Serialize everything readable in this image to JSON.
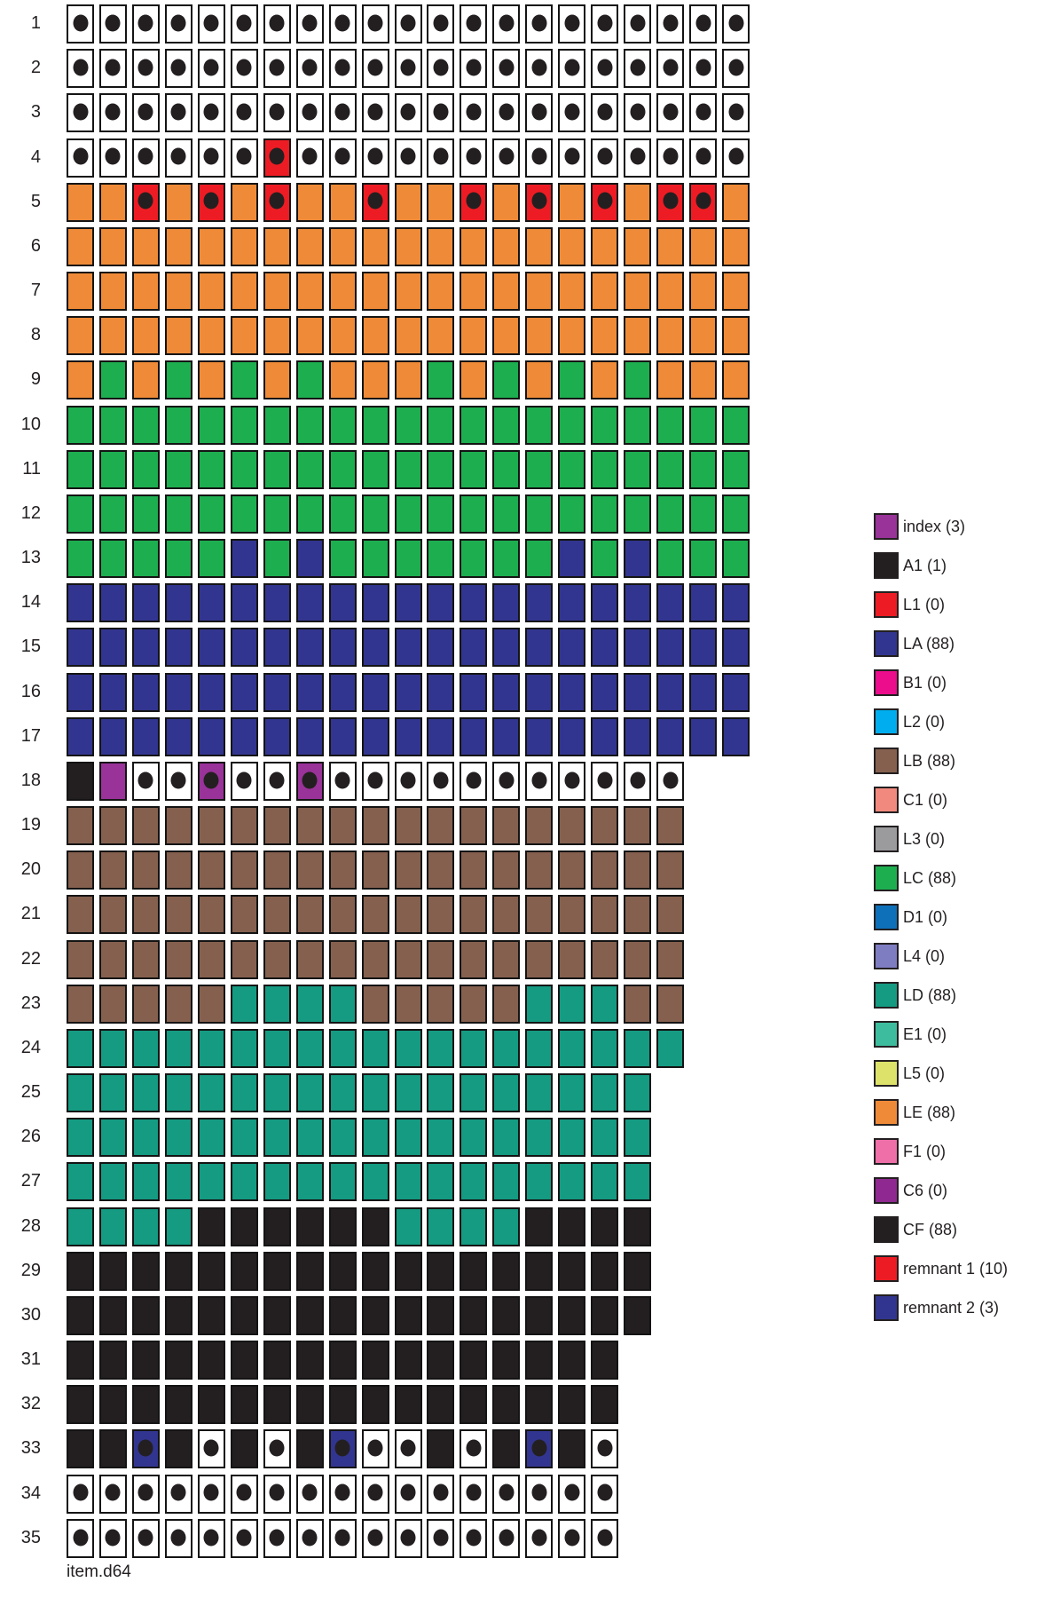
{
  "file_label": "item.d64",
  "chart_data": {
    "type": "heatmap",
    "title": "",
    "description": "Disk block allocation map of item.d64: 35 tracks (rows), sectors per track shown as cells; cell color = owning file, dot = marked block",
    "cell_types": {
      "W": {
        "name": "free-block",
        "color": "#ffffff",
        "dot": true
      },
      "R": {
        "name": "remnant-1",
        "color": "#ed1c24",
        "dot": true
      },
      "O": {
        "name": "LE-block",
        "color": "#ef8b38",
        "dot": false
      },
      "G": {
        "name": "LC-block",
        "color": "#1dae50",
        "dot": false
      },
      "B": {
        "name": "LA-block",
        "color": "#32358f",
        "dot": false
      },
      "N": {
        "name": "LB-block",
        "color": "#85604f",
        "dot": false
      },
      "T": {
        "name": "LD-block",
        "color": "#149b82",
        "dot": false
      },
      "K": {
        "name": "CF-block",
        "color": "#231f20",
        "dot": false
      },
      "A": {
        "name": "A1-block",
        "color": "#231f20",
        "dot": false
      },
      "P": {
        "name": "index-block",
        "color": "#993299",
        "dot": false
      },
      "Q": {
        "name": "index-block",
        "color": "#993299",
        "dot": true
      },
      "U": {
        "name": "remnant-2",
        "color": "#32358f",
        "dot": true
      }
    },
    "rows": [
      {
        "track": "1",
        "cells": "WWWWWWWWWWWWWWWWWWWWW"
      },
      {
        "track": "2",
        "cells": "WWWWWWWWWWWWWWWWWWWWW"
      },
      {
        "track": "3",
        "cells": "WWWWWWWWWWWWWWWWWWWWW"
      },
      {
        "track": "4",
        "cells": "WWWWWWRWWWWWWWWWWWWWW"
      },
      {
        "track": "5",
        "cells": "OOROROROOROORORORORRO"
      },
      {
        "track": "6",
        "cells": "OOOOOOOOOOOOOOOOOOOOO"
      },
      {
        "track": "7",
        "cells": "OOOOOOOOOOOOOOOOOOOOO"
      },
      {
        "track": "8",
        "cells": "OOOOOOOOOOOOOOOOOOOOO"
      },
      {
        "track": "9",
        "cells": "OGOGOGOGOOOGOGOGOGOOO"
      },
      {
        "track": "10",
        "cells": "GGGGGGGGGGGGGGGGGGGGG"
      },
      {
        "track": "11",
        "cells": "GGGGGGGGGGGGGGGGGGGGG"
      },
      {
        "track": "12",
        "cells": "GGGGGGGGGGGGGGGGGGGGG"
      },
      {
        "track": "13",
        "cells": "GGGGGBGBGGGGGGGBGBGGG"
      },
      {
        "track": "14",
        "cells": "BBBBBBBBBBBBBBBBBBBBB"
      },
      {
        "track": "15",
        "cells": "BBBBBBBBBBBBBBBBBBBBB"
      },
      {
        "track": "16",
        "cells": "BBBBBBBBBBBBBBBBBBBBB"
      },
      {
        "track": "17",
        "cells": "BBBBBBBBBBBBBBBBBBBBB"
      },
      {
        "track": "18",
        "cells": "APWWQWWQWWWWWWWWWWW"
      },
      {
        "track": "19",
        "cells": "NNNNNNNNNNNNNNNNNNN"
      },
      {
        "track": "20",
        "cells": "NNNNNNNNNNNNNNNNNNN"
      },
      {
        "track": "21",
        "cells": "NNNNNNNNNNNNNNNNNNN"
      },
      {
        "track": "22",
        "cells": "NNNNNNNNNNNNNNNNNNN"
      },
      {
        "track": "23",
        "cells": "NNNNNTTTTNNNNNTTTNN"
      },
      {
        "track": "24",
        "cells": "TTTTTTTTTTTTTTTTTTT"
      },
      {
        "track": "25",
        "cells": "TTTTTTTTTTTTTTTTTT"
      },
      {
        "track": "26",
        "cells": "TTTTTTTTTTTTTTTTTT"
      },
      {
        "track": "27",
        "cells": "TTTTTTTTTTTTTTTTTT"
      },
      {
        "track": "28",
        "cells": "TTTTKKKKKKTTTTKKKK"
      },
      {
        "track": "29",
        "cells": "KKKKKKKKKKKKKKKKKK"
      },
      {
        "track": "30",
        "cells": "KKKKKKKKKKKKKKKKKK"
      },
      {
        "track": "31",
        "cells": "KKKKKKKKKKKKKKKKK"
      },
      {
        "track": "32",
        "cells": "KKKKKKKKKKKKKKKKK"
      },
      {
        "track": "33",
        "cells": "KKUKWKWKUWWKWKUKW"
      },
      {
        "track": "34",
        "cells": "WWWWWWWWWWWWWWWWW"
      },
      {
        "track": "35",
        "cells": "WWWWWWWWWWWWWWWWW"
      }
    ],
    "legend": [
      {
        "label": "index (3)",
        "color": "#993299"
      },
      {
        "label": "A1 (1)",
        "color": "#231f20"
      },
      {
        "label": "L1 (0)",
        "color": "#ed1c24"
      },
      {
        "label": "LA (88)",
        "color": "#32358f"
      },
      {
        "label": "B1 (0)",
        "color": "#eb0d8c"
      },
      {
        "label": "L2 (0)",
        "color": "#00aeef"
      },
      {
        "label": "LB (88)",
        "color": "#85604f"
      },
      {
        "label": "C1 (0)",
        "color": "#f2897e"
      },
      {
        "label": "L3 (0)",
        "color": "#9b9b9d"
      },
      {
        "label": "LC (88)",
        "color": "#1dae50"
      },
      {
        "label": "D1 (0)",
        "color": "#0d70b8"
      },
      {
        "label": "L4 (0)",
        "color": "#7f7dc2"
      },
      {
        "label": "LD (88)",
        "color": "#149b82"
      },
      {
        "label": "E1 (0)",
        "color": "#3ebd9e"
      },
      {
        "label": "L5 (0)",
        "color": "#dce26a"
      },
      {
        "label": "LE (88)",
        "color": "#ef8b38"
      },
      {
        "label": "F1 (0)",
        "color": "#ef6fa9"
      },
      {
        "label": "C6 (0)",
        "color": "#8f2890"
      },
      {
        "label": "CF (88)",
        "color": "#231f20"
      },
      {
        "label": "remnant 1 (10)",
        "color": "#ed1c24"
      },
      {
        "label": "remnant 2 (3)",
        "color": "#32358f"
      }
    ]
  }
}
